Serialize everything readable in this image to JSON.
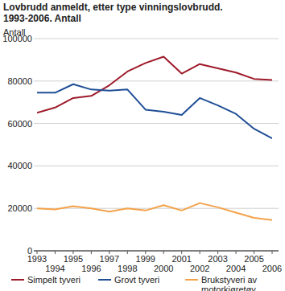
{
  "chart_data": {
    "type": "line",
    "title": "Lovbrudd anmeldt, etter type vinningslovbrudd. 1993-2006. Antall",
    "y_label": "Antall",
    "categories": [
      "1993",
      "1994",
      "1995",
      "1996",
      "1997",
      "1998",
      "1999",
      "2000",
      "2001",
      "2002",
      "2003",
      "2004",
      "2005",
      "2006"
    ],
    "series": [
      {
        "name": "Simpelt tyveri",
        "color": "#9e1b2b",
        "values": [
          65000,
          67500,
          72000,
          73000,
          78000,
          84500,
          88500,
          91500,
          83500,
          88000,
          86000,
          84000,
          81000,
          80500
        ]
      },
      {
        "name": "Grovt tyveri",
        "color": "#1f4e96",
        "values": [
          74500,
          74500,
          78500,
          76000,
          75500,
          76000,
          66500,
          65500,
          64000,
          72000,
          68500,
          64500,
          57500,
          53000
        ]
      },
      {
        "name": "Brukstyveri av motorkjøretøy",
        "color": "#f4a24a",
        "values": [
          20000,
          19500,
          21000,
          20000,
          18500,
          20000,
          19000,
          21500,
          19000,
          22500,
          20500,
          18000,
          15500,
          14500
        ]
      }
    ],
    "ylim": [
      0,
      100000
    ],
    "yticks": [
      0,
      20000,
      40000,
      60000,
      80000,
      100000
    ],
    "grid": true,
    "legend": "bottom"
  }
}
